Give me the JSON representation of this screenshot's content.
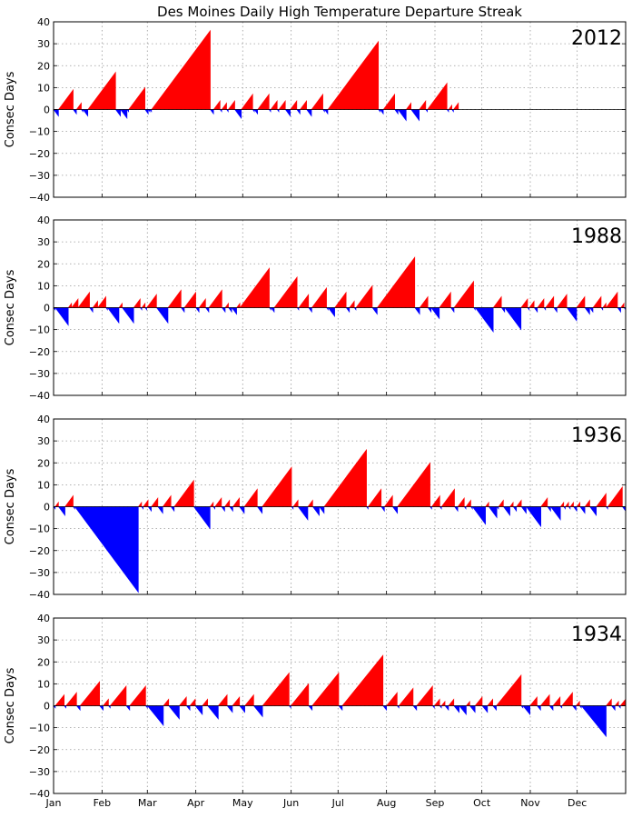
{
  "title": "Des Moines Daily High Temperature Departure Streak",
  "chart_data": {
    "type": "area",
    "title": "Des Moines Daily High Temperature Departure Streak",
    "ylabel": "Consec Days",
    "ylim": [
      -40,
      40
    ],
    "yticks": [
      -40,
      -30,
      -20,
      -10,
      0,
      10,
      20,
      30,
      40
    ],
    "xlim_day_of_year": [
      0,
      366
    ],
    "months": [
      "Jan",
      "Feb",
      "Mar",
      "Apr",
      "May",
      "Jun",
      "Jul",
      "Aug",
      "Sep",
      "Oct",
      "Nov",
      "Dec"
    ],
    "grid": true,
    "colors": {
      "above": "#ff0000",
      "below": "#0000ff"
    },
    "panels": [
      {
        "year": "2012",
        "end_day": 259,
        "streaks": [
          [
            -3
          ],
          [
            9
          ],
          [
            -2
          ],
          [
            3
          ],
          [
            -1
          ],
          [
            -3
          ],
          [
            17
          ],
          [
            -3
          ],
          [
            -4
          ],
          [
            -1
          ],
          [
            10
          ],
          [
            -2
          ],
          [
            -1
          ],
          [
            -1
          ],
          [
            36
          ],
          [
            -2
          ],
          [
            4
          ],
          [
            -1
          ],
          [
            3
          ],
          [
            -1
          ],
          [
            4
          ],
          [
            -4
          ],
          [
            7
          ],
          [
            -1
          ],
          [
            -2
          ],
          [
            7
          ],
          [
            -1
          ],
          [
            4
          ],
          [
            -1
          ],
          [
            4
          ],
          [
            -3
          ],
          [
            4
          ],
          [
            -2
          ],
          [
            4
          ],
          [
            -3
          ],
          [
            7
          ],
          [
            -1
          ],
          [
            -2
          ],
          [
            31
          ],
          [
            -1
          ],
          [
            -2
          ],
          [
            7
          ],
          [
            -2
          ],
          [
            -5
          ],
          [
            3
          ],
          [
            -5
          ],
          [
            4
          ],
          [
            -1
          ],
          [
            12
          ],
          [
            -1
          ],
          [
            2
          ],
          [
            -1
          ],
          [
            3
          ]
        ]
      },
      {
        "year": "1988",
        "end_day": 366,
        "streaks": [
          [
            -1
          ],
          [
            -8
          ],
          [
            2
          ],
          [
            4
          ],
          [
            7
          ],
          [
            -2
          ],
          [
            3
          ],
          [
            5
          ],
          [
            -1
          ],
          [
            -7
          ],
          [
            2
          ],
          [
            -7
          ],
          [
            4
          ],
          [
            -1
          ],
          [
            2
          ],
          [
            -1
          ],
          [
            6
          ],
          [
            -7
          ],
          [
            8
          ],
          [
            -2
          ],
          [
            7
          ],
          [
            -2
          ],
          [
            4
          ],
          [
            -2
          ],
          [
            8
          ],
          [
            -2
          ],
          [
            2
          ],
          [
            -2
          ],
          [
            -3
          ],
          [
            2
          ],
          [
            18
          ],
          [
            -1
          ],
          [
            -2
          ],
          [
            14
          ],
          [
            -1
          ],
          [
            6
          ],
          [
            -2
          ],
          [
            9
          ],
          [
            -1
          ],
          [
            -4
          ],
          [
            7
          ],
          [
            -2
          ],
          [
            3
          ],
          [
            -1
          ],
          [
            10
          ],
          [
            -3
          ],
          [
            23
          ],
          [
            -3
          ],
          [
            5
          ],
          [
            -2
          ],
          [
            -5
          ],
          [
            7
          ],
          [
            -2
          ],
          [
            12
          ],
          [
            -1
          ],
          [
            -11
          ],
          [
            5
          ],
          [
            -2
          ],
          [
            -10
          ],
          [
            4
          ],
          [
            -1
          ],
          [
            3
          ],
          [
            -2
          ],
          [
            4
          ],
          [
            -1
          ],
          [
            5
          ],
          [
            -2
          ],
          [
            6
          ],
          [
            -6
          ],
          [
            5
          ],
          [
            -3
          ],
          [
            -2
          ],
          [
            5
          ],
          [
            -1
          ],
          [
            2
          ],
          [
            7
          ],
          [
            -2
          ],
          [
            2
          ],
          [
            -1
          ]
        ]
      },
      {
        "year": "1936",
        "end_day": 366,
        "streaks": [
          [
            -1
          ],
          [
            2
          ],
          [
            -4
          ],
          [
            5
          ],
          [
            -1
          ],
          [
            -39
          ],
          [
            2
          ],
          [
            -1
          ],
          [
            3
          ],
          [
            -2
          ],
          [
            4
          ],
          [
            -3
          ],
          [
            5
          ],
          [
            -2
          ],
          [
            12
          ],
          [
            -10
          ],
          [
            2
          ],
          [
            -1
          ],
          [
            4
          ],
          [
            -2
          ],
          [
            3
          ],
          [
            -2
          ],
          [
            4
          ],
          [
            -3
          ],
          [
            8
          ],
          [
            -3
          ],
          [
            18
          ],
          [
            -1
          ],
          [
            3
          ],
          [
            -6
          ],
          [
            3
          ],
          [
            -4
          ],
          [
            -3
          ],
          [
            26
          ],
          [
            -1
          ],
          [
            8
          ],
          [
            -2
          ],
          [
            5
          ],
          [
            -3
          ],
          [
            20
          ],
          [
            -1
          ],
          [
            5
          ],
          [
            -1
          ],
          [
            8
          ],
          [
            -2
          ],
          [
            4
          ],
          [
            -1
          ],
          [
            3
          ],
          [
            -1
          ],
          [
            -8
          ],
          [
            2
          ],
          [
            -5
          ],
          [
            -1
          ],
          [
            3
          ],
          [
            -4
          ],
          [
            2
          ],
          [
            -2
          ],
          [
            3
          ],
          [
            -3
          ],
          [
            -9
          ],
          [
            4
          ],
          [
            -2
          ],
          [
            -6
          ],
          [
            2
          ],
          [
            -1
          ],
          [
            2
          ],
          [
            -1
          ],
          [
            2
          ],
          [
            -2
          ],
          [
            2
          ],
          [
            -3
          ],
          [
            3
          ],
          [
            -4
          ],
          [
            6
          ],
          [
            -1
          ],
          [
            9
          ],
          [
            -2
          ]
        ]
      },
      {
        "year": "1934",
        "end_day": 366,
        "streaks": [
          [
            -1
          ],
          [
            5
          ],
          [
            -1
          ],
          [
            6
          ],
          [
            -2
          ],
          [
            11
          ],
          [
            -2
          ],
          [
            3
          ],
          [
            -1
          ],
          [
            9
          ],
          [
            -2
          ],
          [
            9
          ],
          [
            -1
          ],
          [
            -9
          ],
          [
            3
          ],
          [
            -6
          ],
          [
            4
          ],
          [
            -2
          ],
          [
            3
          ],
          [
            -4
          ],
          [
            3
          ],
          [
            -6
          ],
          [
            5
          ],
          [
            -3
          ],
          [
            4
          ],
          [
            -3
          ],
          [
            5
          ],
          [
            -5
          ],
          [
            15
          ],
          [
            -1
          ],
          [
            10
          ],
          [
            -2
          ],
          [
            15
          ],
          [
            -2
          ],
          [
            23
          ],
          [
            -2
          ],
          [
            6
          ],
          [
            -1
          ],
          [
            8
          ],
          [
            -2
          ],
          [
            9
          ],
          [
            -1
          ],
          [
            3
          ],
          [
            -1
          ],
          [
            2
          ],
          [
            -2
          ],
          [
            3
          ],
          [
            -3
          ],
          [
            -4
          ],
          [
            2
          ],
          [
            -3
          ],
          [
            4
          ],
          [
            -3
          ],
          [
            3
          ],
          [
            -2
          ],
          [
            14
          ],
          [
            -1
          ],
          [
            -4
          ],
          [
            4
          ],
          [
            -2
          ],
          [
            5
          ],
          [
            -2
          ],
          [
            4
          ],
          [
            -1
          ],
          [
            6
          ],
          [
            -2
          ],
          [
            2
          ],
          [
            -1
          ],
          [
            -14
          ],
          [
            3
          ],
          [
            -2
          ],
          [
            2
          ],
          [
            -1
          ],
          [
            3
          ]
        ]
      }
    ]
  }
}
